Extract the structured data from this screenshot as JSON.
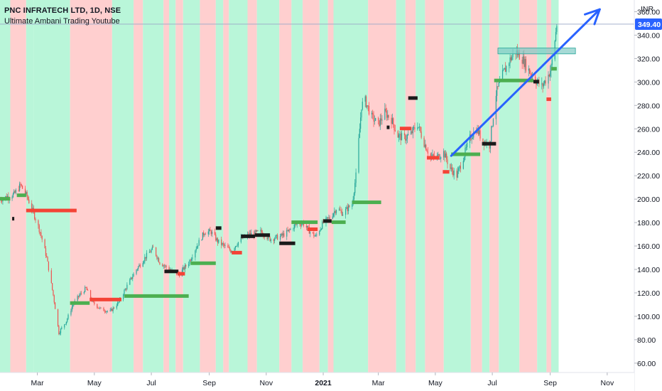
{
  "header": {
    "title": "PNC INFRATECH LTD, 1D, NSE",
    "subtitle": "Ultimate Ambani Trading Youtube"
  },
  "currency": "INR",
  "colors": {
    "bull_zone": "#b9f6d9",
    "bear_zone": "#ffcfcf",
    "candle_up": "#26a69a",
    "candle_down": "#ef5350",
    "level_green": "#4caf50",
    "level_red": "#f44336",
    "level_black": "#1a1a1a",
    "arrow": "#2962ff",
    "price_badge": "#2962ff",
    "box_fill": "#80cbc4",
    "box_stroke": "#26a69a"
  },
  "chart_data": {
    "type": "candlestick",
    "title": "PNC INFRATECH LTD, 1D, NSE",
    "subtitle": "Ultimate Ambani Trading Youtube",
    "y_axis": {
      "unit": "INR",
      "range": [
        52,
        370
      ],
      "ticks": [
        "60.00",
        "80.00",
        "100.00",
        "120.00",
        "140.00",
        "160.00",
        "180.00",
        "200.00",
        "220.00",
        "240.00",
        "260.00",
        "280.00",
        "300.00",
        "320.00",
        "340.00",
        "360.00"
      ],
      "tick_values": [
        60,
        80,
        100,
        120,
        140,
        160,
        180,
        200,
        220,
        240,
        260,
        280,
        300,
        320,
        340,
        360
      ]
    },
    "x_axis": {
      "range": [
        "2020-01-21",
        "2021-11-30"
      ],
      "ticks": [
        {
          "date": "2020-03-01",
          "label": "Mar",
          "bold": false
        },
        {
          "date": "2020-05-01",
          "label": "May",
          "bold": false
        },
        {
          "date": "2020-07-01",
          "label": "Jul",
          "bold": false
        },
        {
          "date": "2020-09-01",
          "label": "Sep",
          "bold": false
        },
        {
          "date": "2020-11-01",
          "label": "Nov",
          "bold": false
        },
        {
          "date": "2021-01-01",
          "label": "2021",
          "bold": true
        },
        {
          "date": "2021-03-01",
          "label": "Mar",
          "bold": false
        },
        {
          "date": "2021-05-01",
          "label": "May",
          "bold": false
        },
        {
          "date": "2021-07-01",
          "label": "Jul",
          "bold": false
        },
        {
          "date": "2021-09-01",
          "label": "Sep",
          "bold": false
        },
        {
          "date": "2021-11-01",
          "label": "Nov",
          "bold": false
        }
      ]
    },
    "last_price": 349.4,
    "last_price_label": "349.40",
    "price_path": [
      [
        "2020-01-21",
        200
      ],
      [
        "2020-02-05",
        204
      ],
      [
        "2020-02-12",
        212
      ],
      [
        "2020-02-19",
        202
      ],
      [
        "2020-02-26",
        188
      ],
      [
        "2020-03-04",
        172
      ],
      [
        "2020-03-11",
        150
      ],
      [
        "2020-03-18",
        118
      ],
      [
        "2020-03-24",
        86
      ],
      [
        "2020-04-01",
        96
      ],
      [
        "2020-04-08",
        110
      ],
      [
        "2020-04-15",
        118
      ],
      [
        "2020-04-22",
        124
      ],
      [
        "2020-04-29",
        112
      ],
      [
        "2020-05-08",
        106
      ],
      [
        "2020-05-18",
        104
      ],
      [
        "2020-05-27",
        112
      ],
      [
        "2020-06-05",
        126
      ],
      [
        "2020-06-15",
        140
      ],
      [
        "2020-06-26",
        152
      ],
      [
        "2020-07-03",
        158
      ],
      [
        "2020-07-10",
        146
      ],
      [
        "2020-07-17",
        142
      ],
      [
        "2020-07-24",
        138
      ],
      [
        "2020-07-31",
        136
      ],
      [
        "2020-08-10",
        146
      ],
      [
        "2020-08-20",
        162
      ],
      [
        "2020-08-27",
        172
      ],
      [
        "2020-09-03",
        172
      ],
      [
        "2020-09-10",
        164
      ],
      [
        "2020-09-17",
        160
      ],
      [
        "2020-09-24",
        156
      ],
      [
        "2020-10-05",
        166
      ],
      [
        "2020-10-15",
        170
      ],
      [
        "2020-10-26",
        172
      ],
      [
        "2020-11-05",
        166
      ],
      [
        "2020-11-16",
        168
      ],
      [
        "2020-11-24",
        172
      ],
      [
        "2020-12-02",
        178
      ],
      [
        "2020-12-10",
        180
      ],
      [
        "2020-12-18",
        172
      ],
      [
        "2020-12-24",
        168
      ],
      [
        "2021-01-01",
        180
      ],
      [
        "2021-01-08",
        184
      ],
      [
        "2021-01-15",
        192
      ],
      [
        "2021-01-22",
        188
      ],
      [
        "2021-02-01",
        196
      ],
      [
        "2021-02-05",
        220
      ],
      [
        "2021-02-08",
        250
      ],
      [
        "2021-02-11",
        280
      ],
      [
        "2021-02-15",
        284
      ],
      [
        "2021-02-22",
        270
      ],
      [
        "2021-03-01",
        264
      ],
      [
        "2021-03-08",
        274
      ],
      [
        "2021-03-15",
        268
      ],
      [
        "2021-03-22",
        254
      ],
      [
        "2021-03-29",
        252
      ],
      [
        "2021-04-05",
        256
      ],
      [
        "2021-04-12",
        264
      ],
      [
        "2021-04-19",
        248
      ],
      [
        "2021-04-26",
        236
      ],
      [
        "2021-05-03",
        236
      ],
      [
        "2021-05-10",
        240
      ],
      [
        "2021-05-17",
        226
      ],
      [
        "2021-05-24",
        220
      ],
      [
        "2021-06-01",
        238
      ],
      [
        "2021-06-07",
        252
      ],
      [
        "2021-06-14",
        260
      ],
      [
        "2021-06-21",
        250
      ],
      [
        "2021-06-28",
        246
      ],
      [
        "2021-07-05",
        290
      ],
      [
        "2021-07-12",
        306
      ],
      [
        "2021-07-19",
        318
      ],
      [
        "2021-07-26",
        326
      ],
      [
        "2021-08-02",
        320
      ],
      [
        "2021-08-09",
        310
      ],
      [
        "2021-08-16",
        302
      ],
      [
        "2021-08-23",
        296
      ],
      [
        "2021-08-30",
        306
      ],
      [
        "2021-09-02",
        312
      ],
      [
        "2021-09-06",
        336
      ],
      [
        "2021-09-08",
        349
      ]
    ],
    "zones": [
      {
        "start": "2020-01-21",
        "end": "2020-02-01",
        "trend": "bull"
      },
      {
        "start": "2020-02-01",
        "end": "2020-02-18",
        "trend": "bear"
      },
      {
        "start": "2020-02-18",
        "end": "2020-02-26",
        "trend": "bull"
      },
      {
        "start": "2020-02-26",
        "end": "2020-04-05",
        "trend": "bull"
      },
      {
        "start": "2020-04-05",
        "end": "2020-05-20",
        "trend": "bear"
      },
      {
        "start": "2020-05-20",
        "end": "2020-06-12",
        "trend": "bull"
      },
      {
        "start": "2020-06-12",
        "end": "2020-06-22",
        "trend": "bear"
      },
      {
        "start": "2020-06-22",
        "end": "2020-07-14",
        "trend": "bull"
      },
      {
        "start": "2020-07-14",
        "end": "2020-07-20",
        "trend": "bear"
      },
      {
        "start": "2020-07-20",
        "end": "2020-07-27",
        "trend": "bull"
      },
      {
        "start": "2020-07-27",
        "end": "2020-08-04",
        "trend": "bear"
      },
      {
        "start": "2020-08-04",
        "end": "2020-08-22",
        "trend": "bull"
      },
      {
        "start": "2020-08-22",
        "end": "2020-09-08",
        "trend": "bear"
      },
      {
        "start": "2020-09-08",
        "end": "2020-09-16",
        "trend": "bull"
      },
      {
        "start": "2020-09-16",
        "end": "2020-09-22",
        "trend": "bear"
      },
      {
        "start": "2020-09-22",
        "end": "2020-10-12",
        "trend": "bull"
      },
      {
        "start": "2020-10-12",
        "end": "2020-10-22",
        "trend": "bear"
      },
      {
        "start": "2020-10-22",
        "end": "2020-11-15",
        "trend": "bull"
      },
      {
        "start": "2020-11-15",
        "end": "2020-11-28",
        "trend": "bear"
      },
      {
        "start": "2020-11-28",
        "end": "2020-12-10",
        "trend": "bull"
      },
      {
        "start": "2020-12-10",
        "end": "2020-12-28",
        "trend": "bear"
      },
      {
        "start": "2020-12-28",
        "end": "2021-01-06",
        "trend": "bull"
      },
      {
        "start": "2021-01-06",
        "end": "2021-01-12",
        "trend": "bear"
      },
      {
        "start": "2021-01-12",
        "end": "2021-02-18",
        "trend": "bull"
      },
      {
        "start": "2021-02-18",
        "end": "2021-03-20",
        "trend": "bear"
      },
      {
        "start": "2021-03-20",
        "end": "2021-03-30",
        "trend": "bull"
      },
      {
        "start": "2021-03-30",
        "end": "2021-04-10",
        "trend": "bear"
      },
      {
        "start": "2021-04-10",
        "end": "2021-04-20",
        "trend": "bull"
      },
      {
        "start": "2021-04-20",
        "end": "2021-05-10",
        "trend": "bear"
      },
      {
        "start": "2021-05-10",
        "end": "2021-06-08",
        "trend": "bull"
      },
      {
        "start": "2021-06-08",
        "end": "2021-06-20",
        "trend": "bear"
      },
      {
        "start": "2021-06-20",
        "end": "2021-06-28",
        "trend": "bull"
      },
      {
        "start": "2021-06-28",
        "end": "2021-07-08",
        "trend": "bear"
      },
      {
        "start": "2021-07-08",
        "end": "2021-07-30",
        "trend": "bull"
      },
      {
        "start": "2021-07-30",
        "end": "2021-08-18",
        "trend": "bear"
      },
      {
        "start": "2021-08-18",
        "end": "2021-08-28",
        "trend": "bull"
      },
      {
        "start": "2021-08-28",
        "end": "2021-09-02",
        "trend": "bear"
      },
      {
        "start": "2021-09-02",
        "end": "2021-09-10",
        "trend": "bull"
      }
    ],
    "levels": [
      {
        "start": "2020-01-21",
        "end": "2020-02-01",
        "price": 200,
        "color": "green"
      },
      {
        "start": "2020-02-03",
        "end": "2020-02-05",
        "price": 183,
        "color": "black"
      },
      {
        "start": "2020-02-08",
        "end": "2020-02-18",
        "price": 203,
        "color": "green"
      },
      {
        "start": "2020-02-18",
        "end": "2020-04-12",
        "price": 190,
        "color": "red"
      },
      {
        "start": "2020-04-05",
        "end": "2020-04-26",
        "price": 111,
        "color": "green"
      },
      {
        "start": "2020-04-26",
        "end": "2020-05-30",
        "price": 114,
        "color": "red"
      },
      {
        "start": "2020-06-02",
        "end": "2020-08-10",
        "price": 117,
        "color": "green"
      },
      {
        "start": "2020-07-15",
        "end": "2020-07-30",
        "price": 138,
        "color": "black"
      },
      {
        "start": "2020-07-29",
        "end": "2020-08-06",
        "price": 136,
        "color": "red"
      },
      {
        "start": "2020-08-12",
        "end": "2020-09-08",
        "price": 145,
        "color": "green"
      },
      {
        "start": "2020-09-08",
        "end": "2020-09-14",
        "price": 175,
        "color": "black"
      },
      {
        "start": "2020-09-25",
        "end": "2020-10-06",
        "price": 154,
        "color": "red"
      },
      {
        "start": "2020-10-05",
        "end": "2020-10-20",
        "price": 168,
        "color": "black"
      },
      {
        "start": "2020-10-20",
        "end": "2020-11-05",
        "price": 169,
        "color": "black"
      },
      {
        "start": "2020-11-15",
        "end": "2020-12-02",
        "price": 162,
        "color": "black"
      },
      {
        "start": "2020-11-28",
        "end": "2020-12-26",
        "price": 180,
        "color": "green"
      },
      {
        "start": "2020-12-15",
        "end": "2020-12-26",
        "price": 174,
        "color": "red"
      },
      {
        "start": "2021-01-01",
        "end": "2021-01-10",
        "price": 181,
        "color": "black"
      },
      {
        "start": "2021-01-10",
        "end": "2021-01-25",
        "price": 180,
        "color": "green"
      },
      {
        "start": "2021-02-01",
        "end": "2021-03-04",
        "price": 197,
        "color": "green"
      },
      {
        "start": "2021-03-10",
        "end": "2021-03-13",
        "price": 261,
        "color": "black"
      },
      {
        "start": "2021-03-24",
        "end": "2021-04-05",
        "price": 260,
        "color": "red"
      },
      {
        "start": "2021-04-02",
        "end": "2021-04-12",
        "price": 286,
        "color": "black"
      },
      {
        "start": "2021-04-22",
        "end": "2021-05-05",
        "price": 235,
        "color": "red"
      },
      {
        "start": "2021-05-09",
        "end": "2021-05-16",
        "price": 223,
        "color": "red"
      },
      {
        "start": "2021-05-18",
        "end": "2021-06-18",
        "price": 238,
        "color": "green"
      },
      {
        "start": "2021-06-20",
        "end": "2021-07-05",
        "price": 247,
        "color": "black"
      },
      {
        "start": "2021-07-03",
        "end": "2021-08-14",
        "price": 301,
        "color": "green"
      },
      {
        "start": "2021-08-14",
        "end": "2021-08-20",
        "price": 300,
        "color": "black"
      },
      {
        "start": "2021-08-28",
        "end": "2021-09-02",
        "price": 285,
        "color": "red"
      },
      {
        "start": "2021-09-02",
        "end": "2021-09-08",
        "price": 311,
        "color": "green"
      }
    ],
    "drawings": {
      "trend_arrow": {
        "from": {
          "date": "2021-05-18",
          "price": 237
        },
        "to": {
          "date": "2021-10-24",
          "price": 362
        }
      },
      "horizontal_line_price": 349.4,
      "resistance_box": {
        "start": "2021-07-07",
        "end": "2021-09-28",
        "top": 329,
        "bottom": 324
      }
    }
  }
}
